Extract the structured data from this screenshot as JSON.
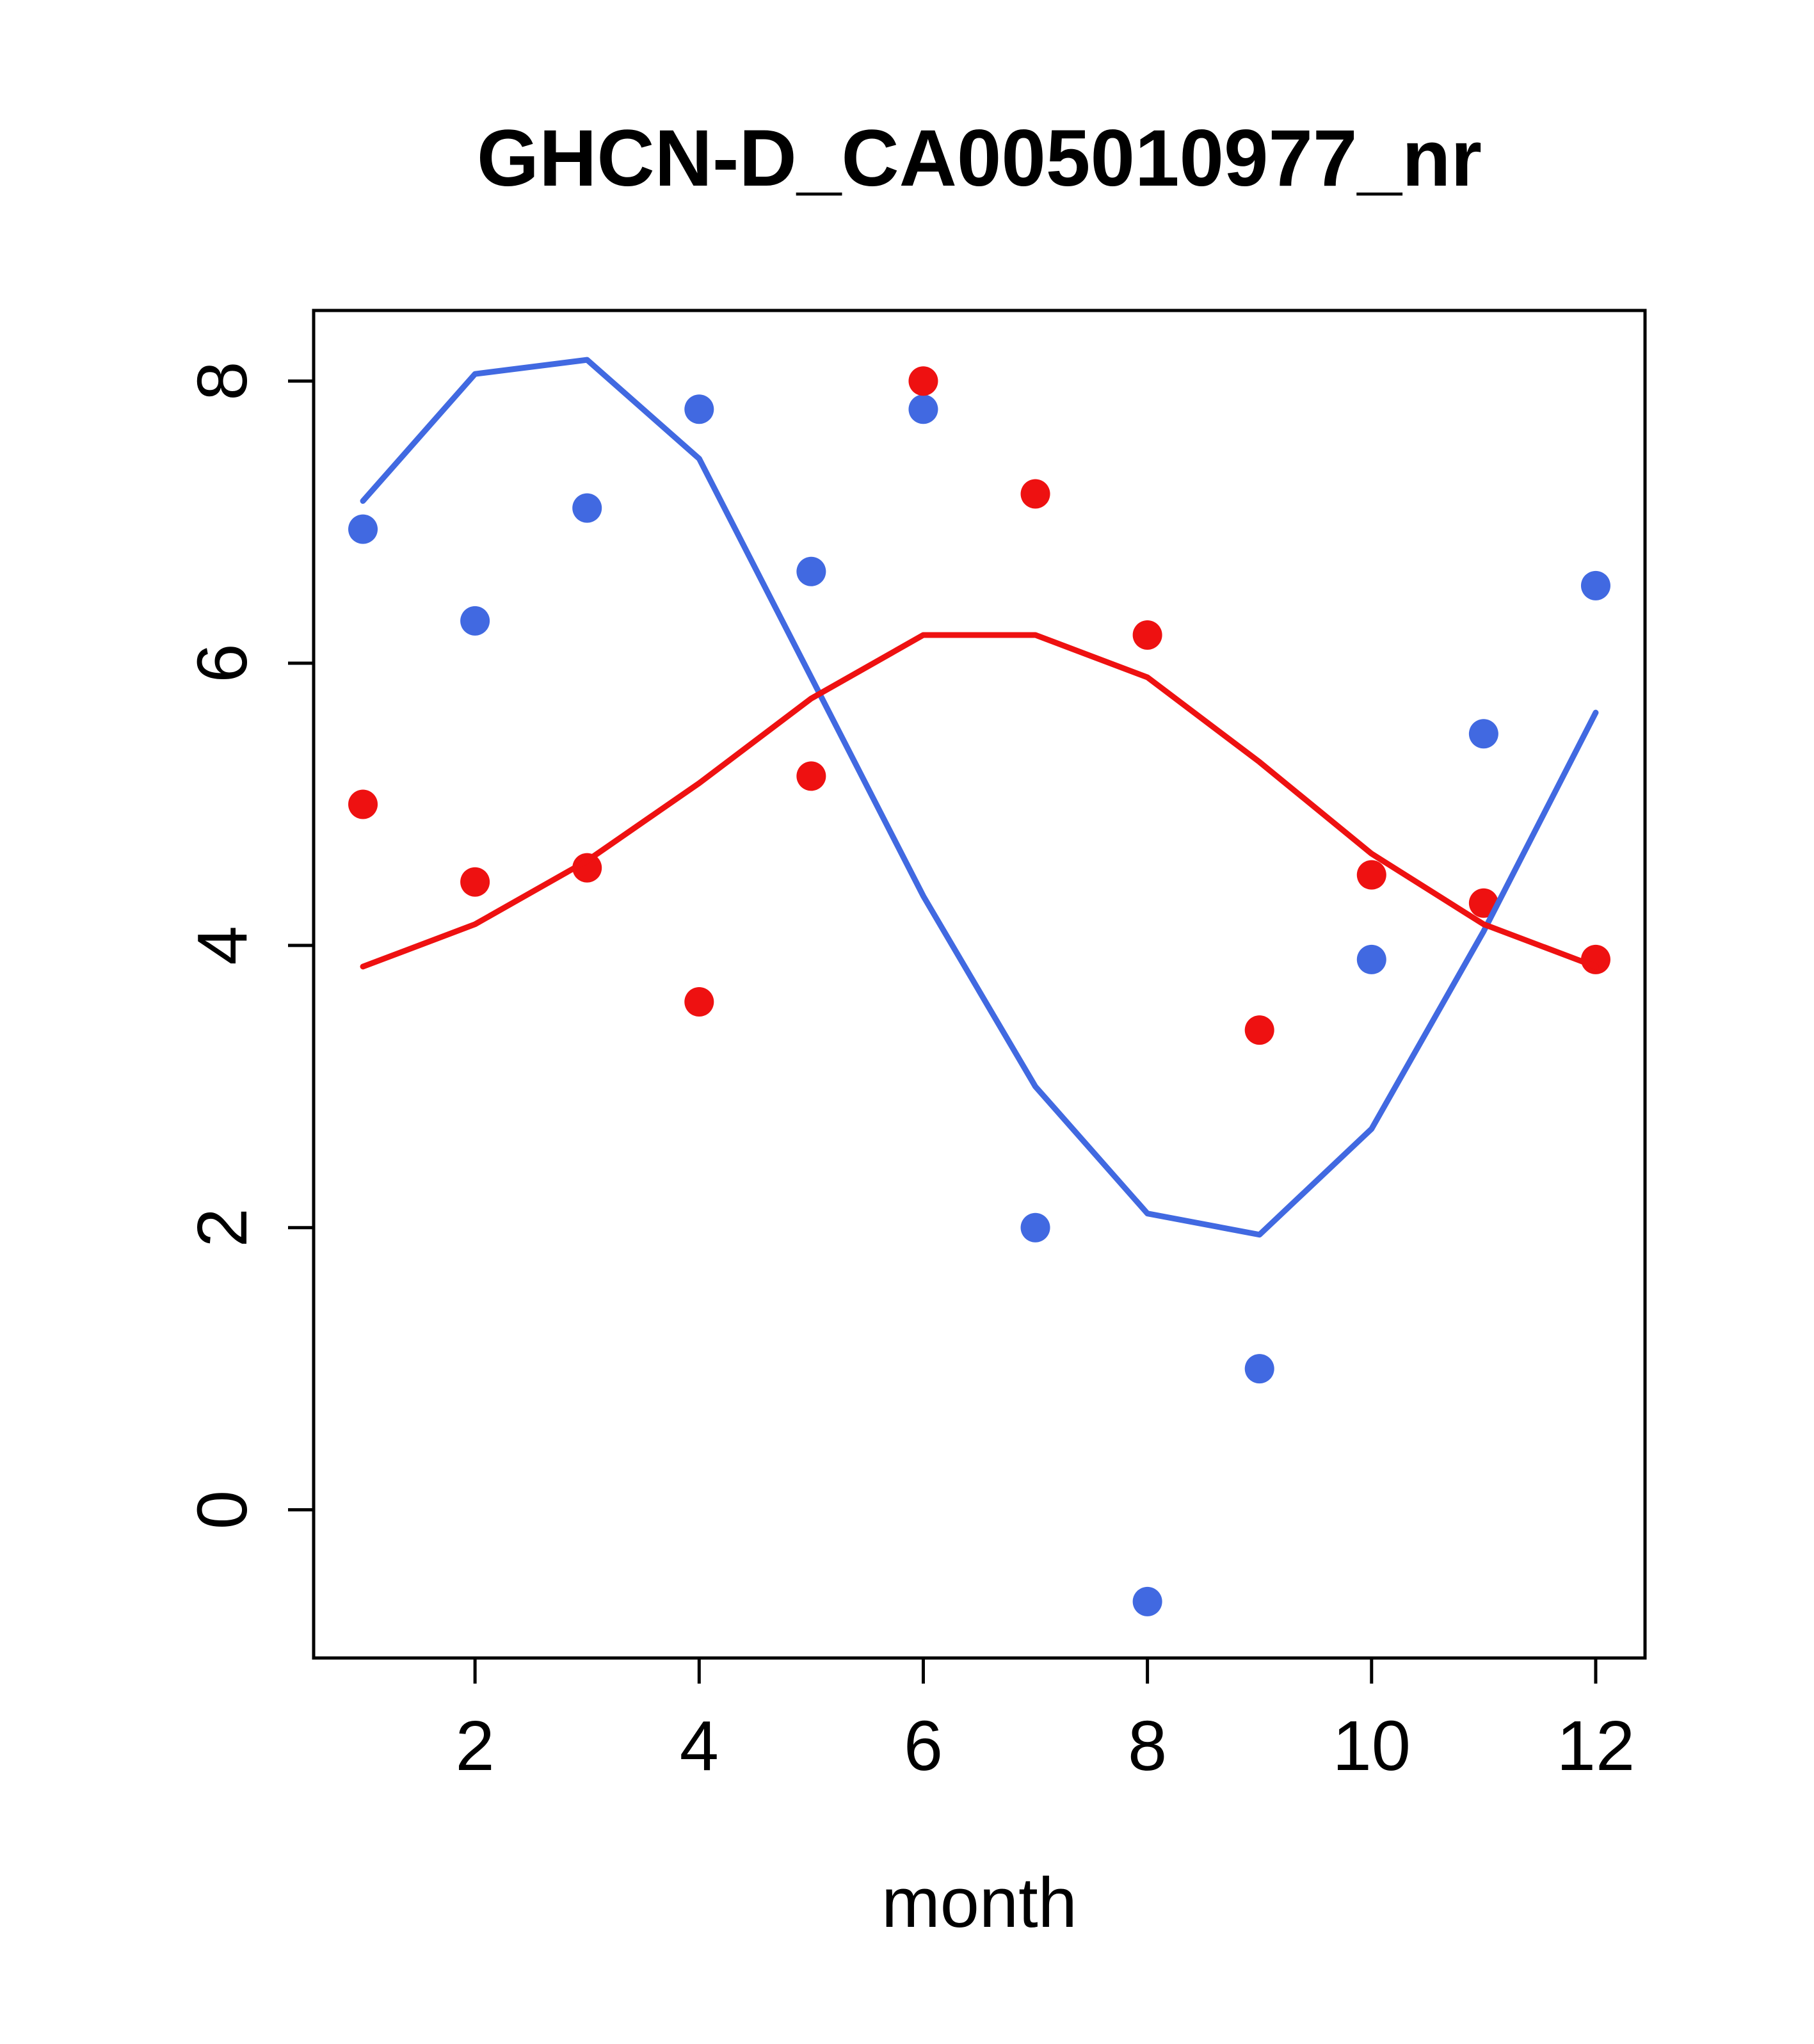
{
  "chart_data": {
    "type": "scatter",
    "title": "GHCN-D_CA005010977_nr",
    "xlabel": "month",
    "ylabel": "",
    "xlim": [
      0.56,
      12.44
    ],
    "ylim": [
      -1.05,
      8.5
    ],
    "x_ticks": [
      2,
      4,
      6,
      8,
      10,
      12
    ],
    "y_ticks": [
      0,
      2,
      4,
      6,
      8
    ],
    "x": [
      1,
      2,
      3,
      4,
      5,
      6,
      7,
      8,
      9,
      10,
      11,
      12
    ],
    "grid": false,
    "legend": "none",
    "colors": {
      "blue": "#4169E1",
      "red": "#EE1111",
      "frame": "#000000"
    },
    "series": [
      {
        "name": "blue-points",
        "kind": "points",
        "color": "#4169E1",
        "values": [
          6.95,
          6.3,
          7.1,
          7.8,
          6.65,
          7.8,
          2.0,
          -0.65,
          1.0,
          3.9,
          5.5,
          6.55
        ]
      },
      {
        "name": "red-points",
        "kind": "points",
        "color": "#EE1111",
        "values": [
          5.0,
          4.45,
          4.55,
          3.6,
          5.2,
          8.0,
          7.2,
          6.2,
          3.4,
          4.5,
          4.3,
          3.9
        ]
      },
      {
        "name": "blue-smooth-line",
        "kind": "line",
        "color": "#4169E1",
        "values": [
          7.15,
          8.05,
          8.15,
          7.45,
          5.9,
          4.35,
          3.0,
          2.1,
          1.95,
          2.7,
          4.1,
          5.65
        ]
      },
      {
        "name": "red-smooth-line",
        "kind": "line",
        "color": "#EE1111",
        "values": [
          3.85,
          4.15,
          4.6,
          5.15,
          5.75,
          6.2,
          6.2,
          5.9,
          5.3,
          4.65,
          4.15,
          3.85
        ]
      }
    ]
  }
}
